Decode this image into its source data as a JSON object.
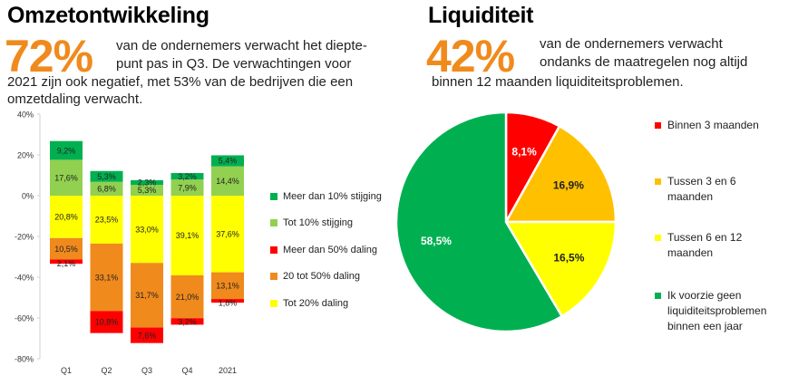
{
  "left": {
    "title": "Omzetontwikkeling",
    "big_pct": "72%",
    "text_line1": "van de ondernemers verwacht het diepte-",
    "text_line2": "punt pas in Q3. De verwachtingen voor",
    "text_line3": "2021 zijn ook negatief, met 53% van de bedrijven die een",
    "text_line4": "omzetdaling verwacht."
  },
  "right": {
    "title": "Liquiditeit",
    "big_pct": "42%",
    "text_line1": "van de ondernemers verwacht",
    "text_line2": "ondanks de maatregelen nog altijd",
    "text_line3": "binnen 12 maanden liquiditeitsproblemen."
  },
  "chart_data": [
    {
      "type": "bar",
      "stacked": true,
      "categories": [
        "Q1",
        "Q2",
        "Q3",
        "Q4",
        "2021"
      ],
      "ylim": [
        -80,
        40
      ],
      "yticks": [
        40,
        20,
        0,
        -20,
        -40,
        -60,
        -80
      ],
      "ytick_labels": [
        "40%",
        "20%",
        "0%",
        "-20%",
        "-40%",
        "-60%",
        "-80%"
      ],
      "positive_series": [
        {
          "name": "Tot 10% stijging",
          "color": "#92d050",
          "values": [
            17.6,
            6.8,
            5.3,
            7.9,
            14.4
          ],
          "labels": [
            "17,6%",
            "6,8%",
            "5,3%",
            "7,9%",
            "14,4%"
          ]
        },
        {
          "name": "Meer dan 10% stijging",
          "color": "#00b050",
          "values": [
            9.2,
            5.3,
            2.3,
            3.2,
            5.4
          ],
          "labels": [
            "9,2%",
            "5,3%",
            "2,3%",
            "3,2%",
            "5,4%"
          ]
        }
      ],
      "negative_series": [
        {
          "name": "Tot 20% daling",
          "color": "#ffff00",
          "values": [
            20.8,
            23.5,
            33.0,
            39.1,
            37.6
          ],
          "labels": [
            "20,8%",
            "23,5%",
            "33,0%",
            "39,1%",
            "37,6%"
          ]
        },
        {
          "name": "20 tot 50% daling",
          "color": "#f08a1c",
          "values": [
            10.5,
            33.1,
            31.7,
            21.0,
            13.1
          ],
          "labels": [
            "10,5%",
            "33,1%",
            "31,7%",
            "21,0%",
            "13,1%"
          ]
        },
        {
          "name": "Meer dan 50% daling",
          "color": "#ff0000",
          "values": [
            2.1,
            10.8,
            7.6,
            3.2,
            1.8
          ],
          "labels": [
            "2,1%",
            "10,8%",
            "7,6%",
            "3,2%",
            "1,8%"
          ]
        }
      ],
      "legend": [
        {
          "name": "Meer dan 10% stijging",
          "color": "#00b050"
        },
        {
          "name": "Tot 10% stijging",
          "color": "#92d050"
        },
        {
          "name": "Meer dan 50% daling",
          "color": "#ff0000"
        },
        {
          "name": "20 tot 50% daling",
          "color": "#f08a1c"
        },
        {
          "name": "Tot 20% daling",
          "color": "#ffff00"
        }
      ]
    },
    {
      "type": "pie",
      "slices": [
        {
          "name": "Binnen 3 maanden",
          "value": 8.1,
          "label": "8,1%",
          "color": "#ff0000",
          "label_color": "#ffffff"
        },
        {
          "name": "Tussen 3 en 6 maanden",
          "value": 16.9,
          "label": "16,9%",
          "color": "#ffc000",
          "label_color": "#222222"
        },
        {
          "name": "Tussen 6 en 12 maanden",
          "value": 16.5,
          "label": "16,5%",
          "color": "#ffff00",
          "label_color": "#222222"
        },
        {
          "name": "Ik voorzie geen liquiditeitsproblemen binnen een jaar",
          "value": 58.5,
          "label": "58,5%",
          "color": "#00b050",
          "label_color": "#ffffff"
        }
      ],
      "legend": [
        {
          "lines": [
            "Binnen 3 maanden"
          ],
          "color": "#ff0000"
        },
        {
          "lines": [
            "Tussen 3 en 6 maanden"
          ],
          "color": "#ffc000"
        },
        {
          "lines": [
            "Tussen 6 en 12",
            "maanden"
          ],
          "color": "#ffff00"
        },
        {
          "lines": [
            "Ik voorzie geen",
            "liquiditeitsproblemen",
            "binnen een jaar"
          ],
          "color": "#00b050"
        }
      ]
    }
  ]
}
